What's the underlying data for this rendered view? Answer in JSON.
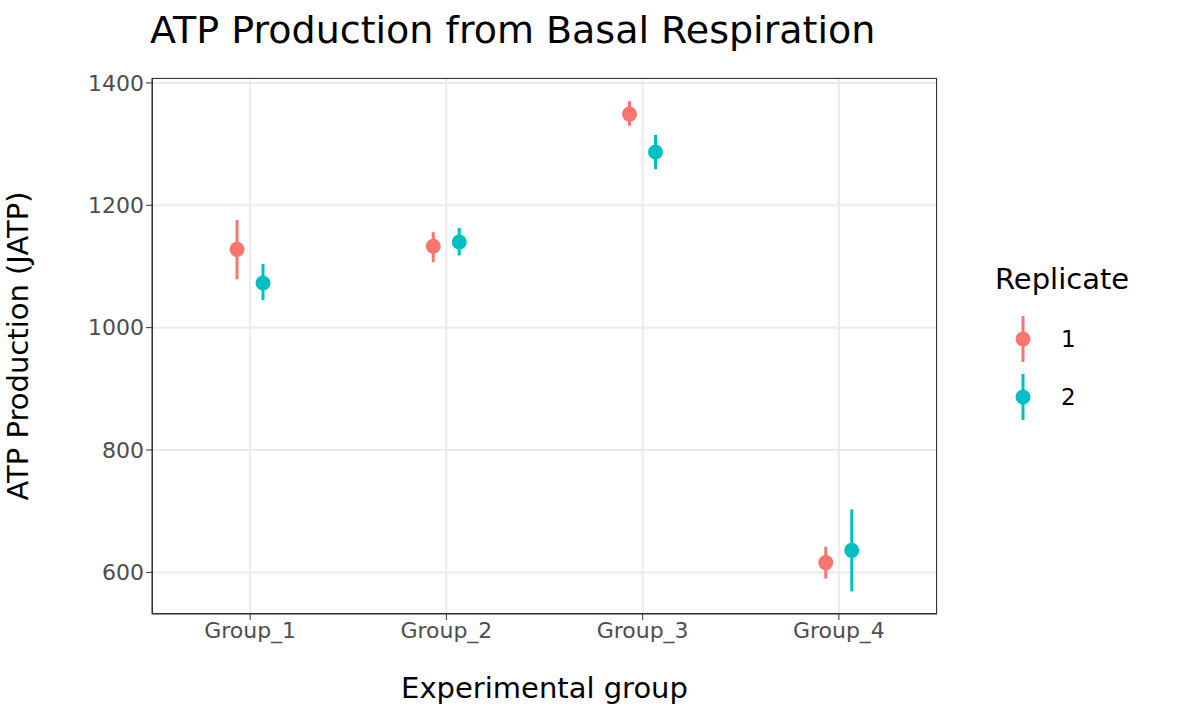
{
  "chart_data": {
    "type": "scatter",
    "title": "ATP Production from Basal Respiration",
    "x_label": "Experimental group",
    "y_label": "ATP Production (JATP)",
    "categories": [
      "Group_1",
      "Group_2",
      "Group_3",
      "Group_4"
    ],
    "legend_title": "Replicate",
    "legend": "right",
    "marker": "circle",
    "grid": true,
    "ylim": [
      532,
      1408
    ],
    "yticks": [
      600,
      800,
      1000,
      1200,
      1400
    ],
    "series": [
      {
        "name": "1",
        "color": "#F8766D",
        "values": [
          1128,
          1133,
          1349,
          616
        ],
        "lower": [
          1079,
          1107,
          1330,
          590
        ],
        "upper": [
          1176,
          1156,
          1370,
          642
        ]
      },
      {
        "name": "2",
        "color": "#00BFC4",
        "values": [
          1073,
          1140,
          1287,
          636
        ],
        "lower": [
          1045,
          1118,
          1259,
          569
        ],
        "upper": [
          1104,
          1163,
          1315,
          703
        ]
      }
    ]
  }
}
